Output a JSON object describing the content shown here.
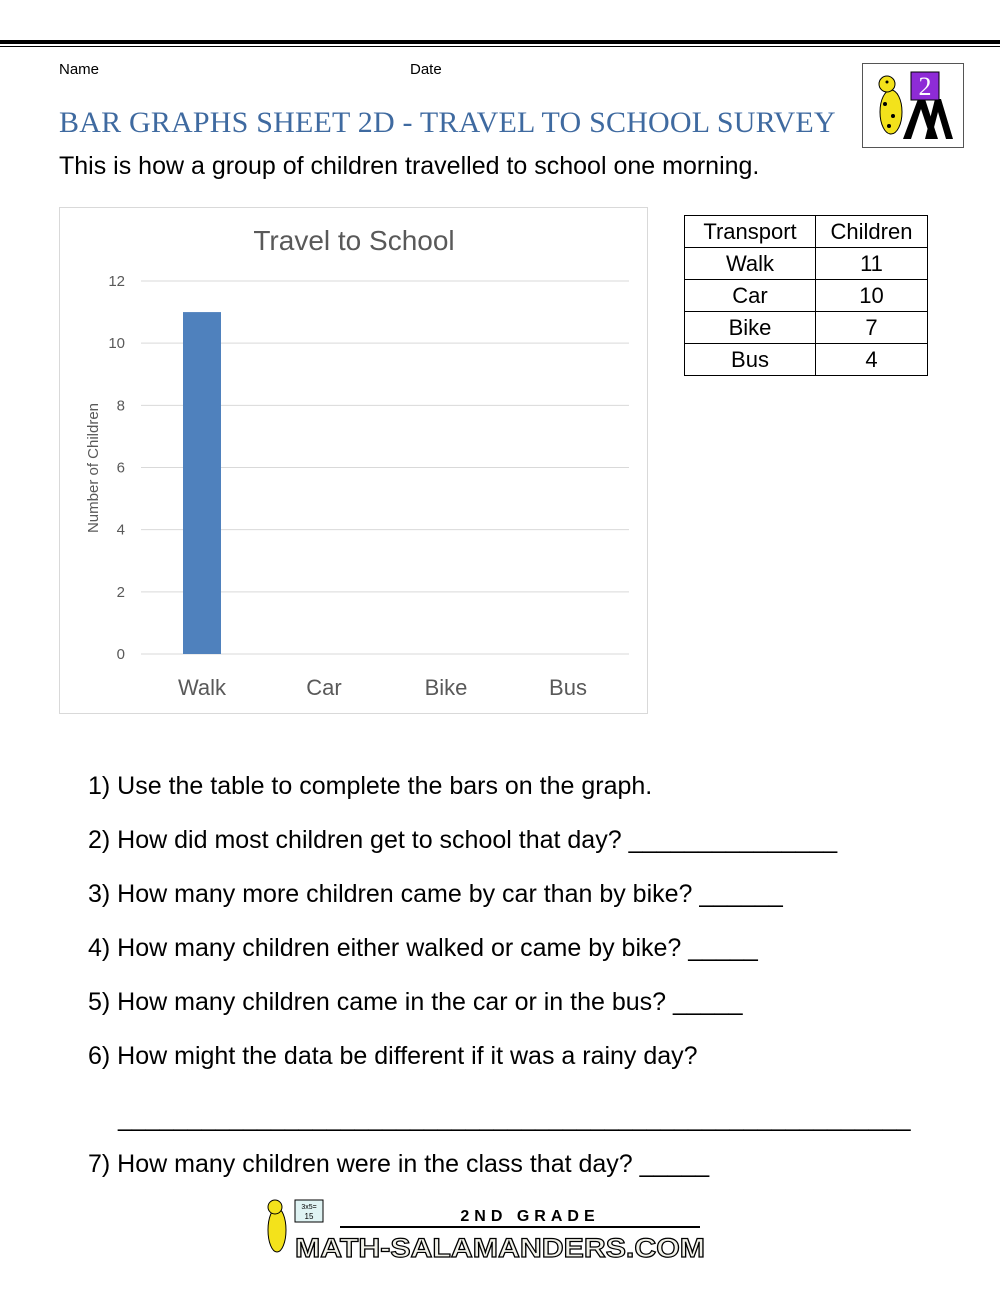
{
  "header": {
    "name_label": "Name",
    "date_label": "Date",
    "title": "BAR GRAPHS SHEET 2D - TRAVEL TO SCHOOL SURVEY",
    "intro": "This is how a group of children travelled to school one morning.",
    "logo_text": "2"
  },
  "chart_data": {
    "type": "bar",
    "title": "Travel to School",
    "xlabel": "",
    "ylabel": "Number of Children",
    "categories": [
      "Walk",
      "Car",
      "Bike",
      "Bus"
    ],
    "values": [
      11,
      null,
      null,
      null
    ],
    "ylim": [
      0,
      12
    ],
    "yticks": [
      0,
      2,
      4,
      6,
      8,
      10,
      12
    ],
    "grid": true,
    "bar_color": "#4f81bd"
  },
  "table": {
    "headers": [
      "Transport",
      "Children"
    ],
    "rows": [
      [
        "Walk",
        "11"
      ],
      [
        "Car",
        "10"
      ],
      [
        "Bike",
        "7"
      ],
      [
        "Bus",
        "4"
      ]
    ]
  },
  "questions": [
    "1) Use the table to complete the bars on the graph.",
    "2) How did most children get to school that day? _______________",
    "3) How many more children came by car than by bike? ______",
    "4) How many children either walked or came by bike? _____",
    "5) How many children came in the car or in the bus? _____",
    "6) How might the data be different if it was a rainy day?",
    "7) How many children were in the class that day? _____"
  ],
  "answer_line": "_________________________________________________________",
  "footer": {
    "grade": "2ND GRADE",
    "site": "MATH-SALAMANDERS.COM",
    "board": "3x5= 15"
  }
}
